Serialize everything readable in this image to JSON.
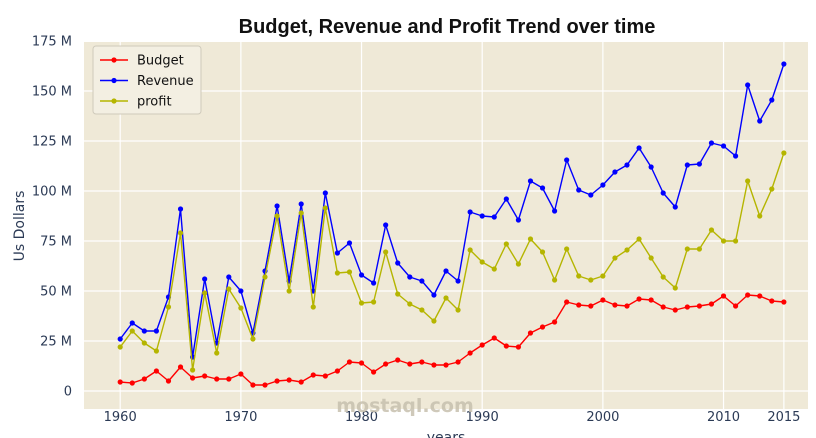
{
  "chart_data": {
    "type": "line",
    "title": "Budget, Revenue and Profit Trend over time",
    "xlabel": "years",
    "ylabel": "Us Dollars",
    "xlim": [
      1957.0,
      1917.0
    ],
    "ylim": [
      -8000000,
      175000000
    ],
    "x_ticks": [
      1960,
      1970,
      1980,
      1990,
      2000,
      2010,
      2015
    ],
    "y_ticks": [
      {
        "value": 0,
        "label": "0"
      },
      {
        "value": 25000000,
        "label": "25 M"
      },
      {
        "value": 50000000,
        "label": "50 M"
      },
      {
        "value": 75000000,
        "label": "75 M"
      },
      {
        "value": 100000000,
        "label": "100 M"
      },
      {
        "value": 125000000,
        "label": "125 M"
      },
      {
        "value": 150000000,
        "label": "150 M"
      },
      {
        "value": 175000000,
        "label": "175 M"
      }
    ],
    "grid": true,
    "legend_position": "top-left",
    "plot_background": "#efe9d7",
    "x": [
      1960,
      1961,
      1962,
      1963,
      1964,
      1965,
      1966,
      1967,
      1968,
      1969,
      1970,
      1971,
      1972,
      1973,
      1974,
      1975,
      1976,
      1977,
      1978,
      1979,
      1980,
      1981,
      1982,
      1983,
      1984,
      1985,
      1986,
      1987,
      1988,
      1989,
      1990,
      1991,
      1992,
      1993,
      1994,
      1995,
      1996,
      1997,
      1998,
      1999,
      2000,
      2001,
      2002,
      2003,
      2004,
      2005,
      2006,
      2007,
      2008,
      2009,
      2010,
      2011,
      2012,
      2013,
      2014,
      2015
    ],
    "series": [
      {
        "name": "Budget",
        "color": "#ff0000",
        "values": [
          4500000,
          4000000,
          6000000,
          10000000,
          5000000,
          12000000,
          6500000,
          7500000,
          6000000,
          6000000,
          8500000,
          3000000,
          3000000,
          5000000,
          5500000,
          4500000,
          8000000,
          7500000,
          10000000,
          14500000,
          14000000,
          9500000,
          13500000,
          15500000,
          13500000,
          14500000,
          13000000,
          13000000,
          14500000,
          19000000,
          23000000,
          26500000,
          22500000,
          22000000,
          29000000,
          32000000,
          34500000,
          44500000,
          43000000,
          42500000,
          45500000,
          43000000,
          42500000,
          46000000,
          45500000,
          42000000,
          40500000,
          42000000,
          42500000,
          43500000,
          47500000,
          42500000,
          48000000,
          47500000,
          45000000,
          44500000
        ]
      },
      {
        "name": "Revenue",
        "color": "#0000ff",
        "values": [
          26000000,
          34000000,
          30000000,
          30000000,
          47000000,
          91000000,
          17000000,
          56000000,
          24000000,
          57000000,
          50000000,
          29000000,
          60000000,
          92500000,
          55000000,
          93500000,
          50000000,
          99000000,
          69000000,
          74000000,
          58000000,
          54000000,
          83000000,
          64000000,
          57000000,
          55000000,
          48000000,
          60000000,
          55000000,
          89500000,
          87500000,
          87000000,
          96000000,
          85500000,
          105000000,
          101500000,
          90000000,
          115500000,
          100500000,
          98000000,
          103000000,
          109500000,
          113000000,
          121500000,
          112000000,
          99000000,
          92000000,
          113000000,
          113500000,
          124000000,
          122500000,
          117500000,
          153000000,
          135000000,
          145500000,
          163500000
        ]
      },
      {
        "name": "profit",
        "color": "#b5b500",
        "values": [
          22000000,
          30000000,
          24000000,
          20000000,
          42000000,
          79000000,
          10500000,
          49000000,
          19000000,
          51000000,
          41500000,
          26000000,
          57000000,
          87500000,
          50000000,
          89000000,
          42000000,
          91500000,
          59000000,
          59500000,
          44000000,
          44500000,
          69500000,
          48500000,
          43500000,
          40500000,
          35000000,
          46500000,
          40500000,
          70500000,
          64500000,
          61000000,
          73500000,
          63500000,
          76000000,
          69500000,
          55500000,
          71000000,
          57500000,
          55500000,
          57500000,
          66500000,
          70500000,
          76000000,
          66500000,
          57000000,
          51500000,
          71000000,
          71000000,
          80500000,
          75000000,
          75000000,
          105000000,
          87500000,
          101000000,
          119000000
        ]
      }
    ]
  },
  "watermark": "mostaql.com"
}
